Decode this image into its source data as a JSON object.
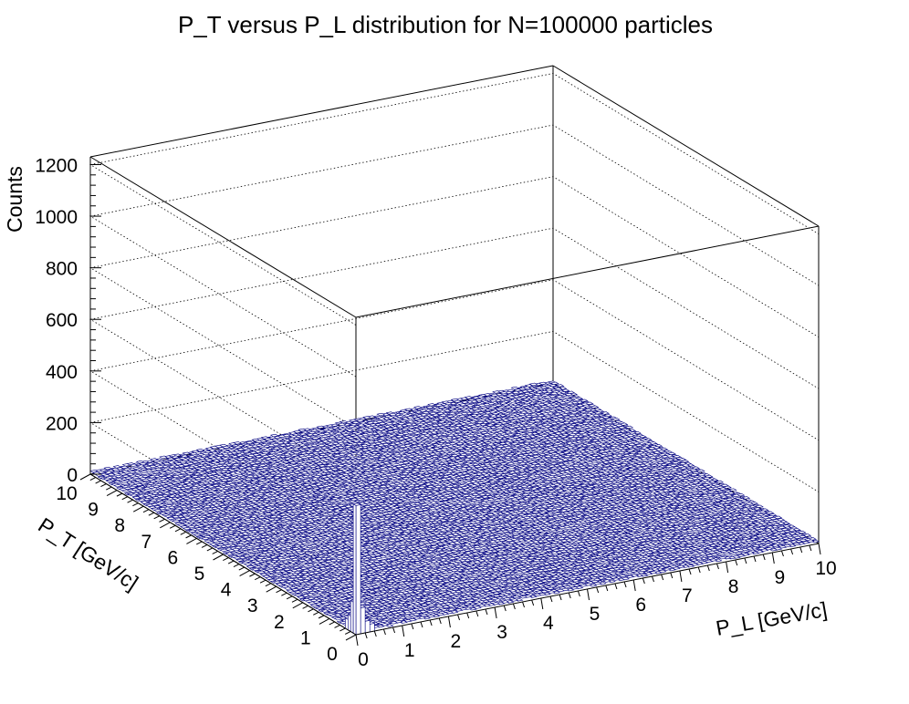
{
  "chart_data": {
    "type": "lego3d",
    "title": "P_T versus P_L distribution for N=100000 particles",
    "xlabel": "P_L [GeV/c]",
    "ylabel": "P_T [GeV/c]",
    "zlabel": "Counts",
    "xlim": [
      0,
      10
    ],
    "ylim": [
      0,
      10
    ],
    "zlim": [
      0,
      1230
    ],
    "x_ticks": [
      "0",
      "1",
      "2",
      "3",
      "4",
      "5",
      "6",
      "7",
      "8",
      "9",
      "10"
    ],
    "y_ticks": [
      "0",
      "1",
      "2",
      "3",
      "4",
      "5",
      "6",
      "7",
      "8",
      "9",
      "10"
    ],
    "z_ticks": [
      "0",
      "200",
      "400",
      "600",
      "800",
      "1000",
      "1200"
    ],
    "z_tick_values": [
      0,
      200,
      400,
      600,
      800,
      1000,
      1200
    ],
    "grid": true,
    "bins": [
      100,
      100
    ],
    "bar_color": "#000080",
    "background_level": 10,
    "peak": {
      "x": 0.05,
      "y": 0.05,
      "count": 500
    },
    "ridge_P_L_near_zero": [
      {
        "y": 0.15,
        "count": 120
      },
      {
        "y": 0.25,
        "count": 60
      },
      {
        "y": 0.35,
        "count": 40
      }
    ],
    "ridge_P_T_near_zero": [
      {
        "x": 0.15,
        "count": 100
      },
      {
        "x": 0.25,
        "count": 45
      },
      {
        "x": 0.35,
        "count": 30
      }
    ]
  }
}
